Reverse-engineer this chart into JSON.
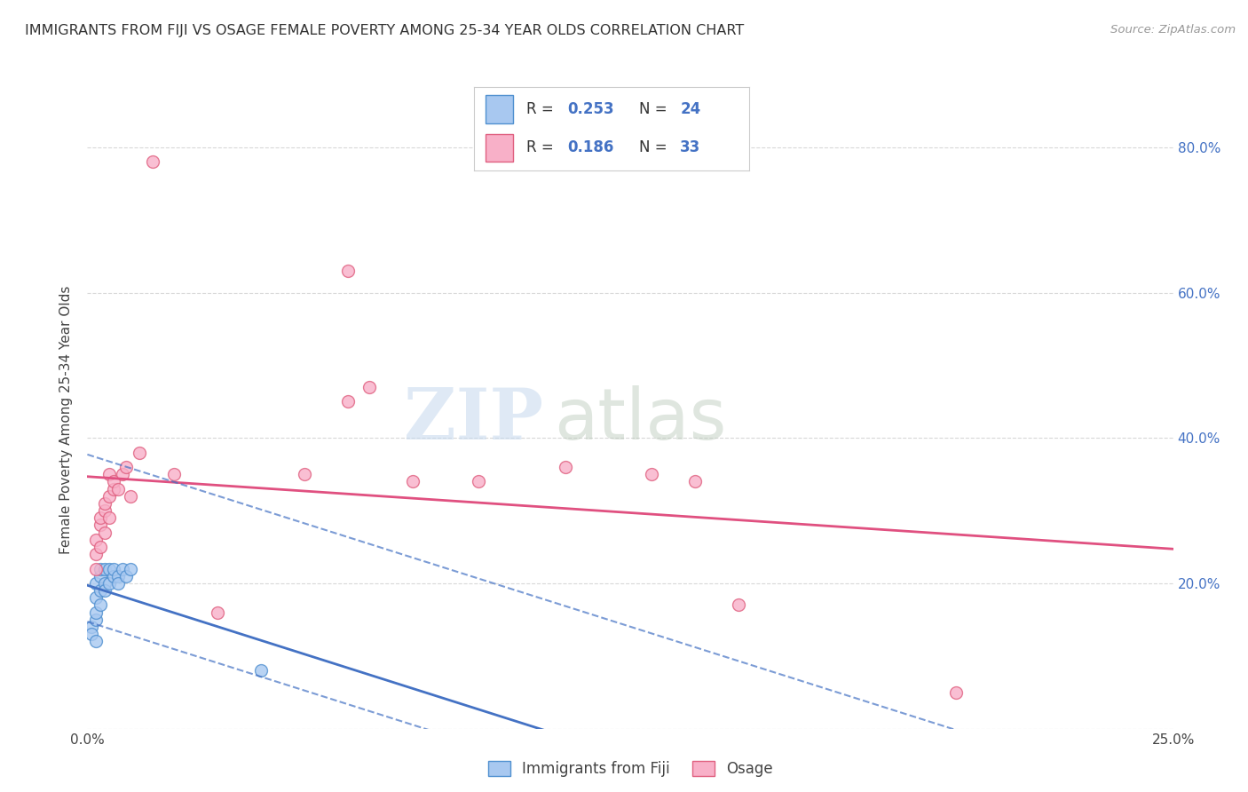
{
  "title": "IMMIGRANTS FROM FIJI VS OSAGE FEMALE POVERTY AMONG 25-34 YEAR OLDS CORRELATION CHART",
  "source": "Source: ZipAtlas.com",
  "ylabel": "Female Poverty Among 25-34 Year Olds",
  "xlim": [
    0.0,
    0.25
  ],
  "ylim": [
    0.0,
    0.85
  ],
  "xticks": [
    0.0,
    0.05,
    0.1,
    0.15,
    0.2,
    0.25
  ],
  "yticks": [
    0.0,
    0.2,
    0.4,
    0.6,
    0.8
  ],
  "right_ytick_labels": [
    "",
    "20.0%",
    "40.0%",
    "60.0%",
    "80.0%"
  ],
  "xtick_labels": [
    "0.0%",
    "",
    "",
    "",
    "",
    "25.0%"
  ],
  "legend_fiji_R": "0.253",
  "legend_fiji_N": "24",
  "legend_osage_R": "0.186",
  "legend_osage_N": "33",
  "fiji_fill_color": "#a8c8f0",
  "osage_fill_color": "#f8b0c8",
  "fiji_edge_color": "#5090d0",
  "osage_edge_color": "#e06080",
  "fiji_line_color": "#4472c4",
  "osage_line_color": "#e05080",
  "fiji_scatter": [
    [
      0.001,
      0.14
    ],
    [
      0.001,
      0.13
    ],
    [
      0.002,
      0.15
    ],
    [
      0.002,
      0.12
    ],
    [
      0.002,
      0.16
    ],
    [
      0.002,
      0.18
    ],
    [
      0.002,
      0.2
    ],
    [
      0.003,
      0.17
    ],
    [
      0.003,
      0.19
    ],
    [
      0.003,
      0.21
    ],
    [
      0.003,
      0.22
    ],
    [
      0.004,
      0.2
    ],
    [
      0.004,
      0.22
    ],
    [
      0.004,
      0.19
    ],
    [
      0.005,
      0.2
    ],
    [
      0.005,
      0.22
    ],
    [
      0.006,
      0.21
    ],
    [
      0.006,
      0.22
    ],
    [
      0.007,
      0.21
    ],
    [
      0.007,
      0.2
    ],
    [
      0.008,
      0.22
    ],
    [
      0.009,
      0.21
    ],
    [
      0.01,
      0.22
    ],
    [
      0.04,
      0.08
    ]
  ],
  "osage_scatter": [
    [
      0.002,
      0.26
    ],
    [
      0.002,
      0.24
    ],
    [
      0.002,
      0.22
    ],
    [
      0.003,
      0.25
    ],
    [
      0.003,
      0.28
    ],
    [
      0.003,
      0.29
    ],
    [
      0.004,
      0.27
    ],
    [
      0.004,
      0.3
    ],
    [
      0.004,
      0.31
    ],
    [
      0.005,
      0.29
    ],
    [
      0.005,
      0.32
    ],
    [
      0.005,
      0.35
    ],
    [
      0.006,
      0.33
    ],
    [
      0.006,
      0.34
    ],
    [
      0.007,
      0.33
    ],
    [
      0.008,
      0.35
    ],
    [
      0.009,
      0.36
    ],
    [
      0.01,
      0.32
    ],
    [
      0.012,
      0.38
    ],
    [
      0.02,
      0.35
    ],
    [
      0.03,
      0.16
    ],
    [
      0.05,
      0.35
    ],
    [
      0.06,
      0.45
    ],
    [
      0.065,
      0.47
    ],
    [
      0.075,
      0.34
    ],
    [
      0.09,
      0.34
    ],
    [
      0.11,
      0.36
    ],
    [
      0.13,
      0.35
    ],
    [
      0.14,
      0.34
    ],
    [
      0.15,
      0.17
    ],
    [
      0.2,
      0.05
    ],
    [
      0.015,
      0.78
    ],
    [
      0.06,
      0.63
    ]
  ],
  "watermark_zip": "ZIP",
  "watermark_atlas": "atlas",
  "background_color": "#ffffff",
  "grid_color": "#d8d8d8",
  "marker_size": 100
}
